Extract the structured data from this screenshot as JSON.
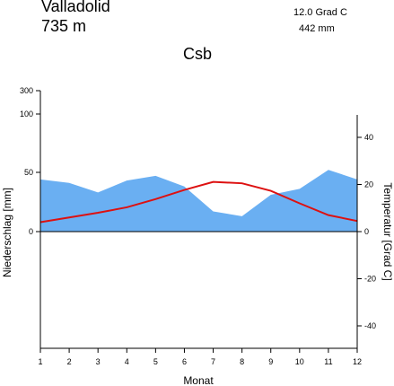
{
  "header": {
    "station": "Valladolid",
    "elevation": "735  m",
    "mean_temperature": "12.0 Grad C",
    "annual_precipitation": "442 mm",
    "climate_class": "Csb"
  },
  "chart_data": {
    "type": "area",
    "title": "Csb",
    "xlabel": "Monat",
    "ylabel_left": "Niederschlag [mm]",
    "ylabel_right": "Temperatur [Grad C]",
    "categories": [
      "1",
      "2",
      "3",
      "4",
      "5",
      "6",
      "7",
      "8",
      "9",
      "10",
      "11",
      "12"
    ],
    "series": [
      {
        "name": "Niederschlag",
        "kind": "area",
        "axis": "left",
        "color": "#6aaff2",
        "values": [
          44,
          41,
          33,
          43,
          47,
          38,
          17,
          13,
          31,
          36,
          52,
          44
        ]
      },
      {
        "name": "Temperatur",
        "kind": "line",
        "axis": "right",
        "color": "#dd1111",
        "values": [
          4.0,
          6.0,
          8.0,
          10.3,
          13.8,
          17.7,
          21.1,
          20.5,
          17.3,
          12.0,
          7.0,
          4.5
        ]
      }
    ],
    "left_axis": {
      "ticks": [
        0,
        50,
        100,
        300
      ],
      "range": [
        -150,
        300
      ]
    },
    "right_axis": {
      "ticks": [
        40,
        20,
        0,
        -20,
        -40
      ],
      "range": [
        -50,
        50
      ]
    },
    "x_ticks": [
      "1",
      "2",
      "3",
      "4",
      "5",
      "6",
      "7",
      "8",
      "9",
      "10",
      "11",
      "12"
    ],
    "grid": false
  }
}
